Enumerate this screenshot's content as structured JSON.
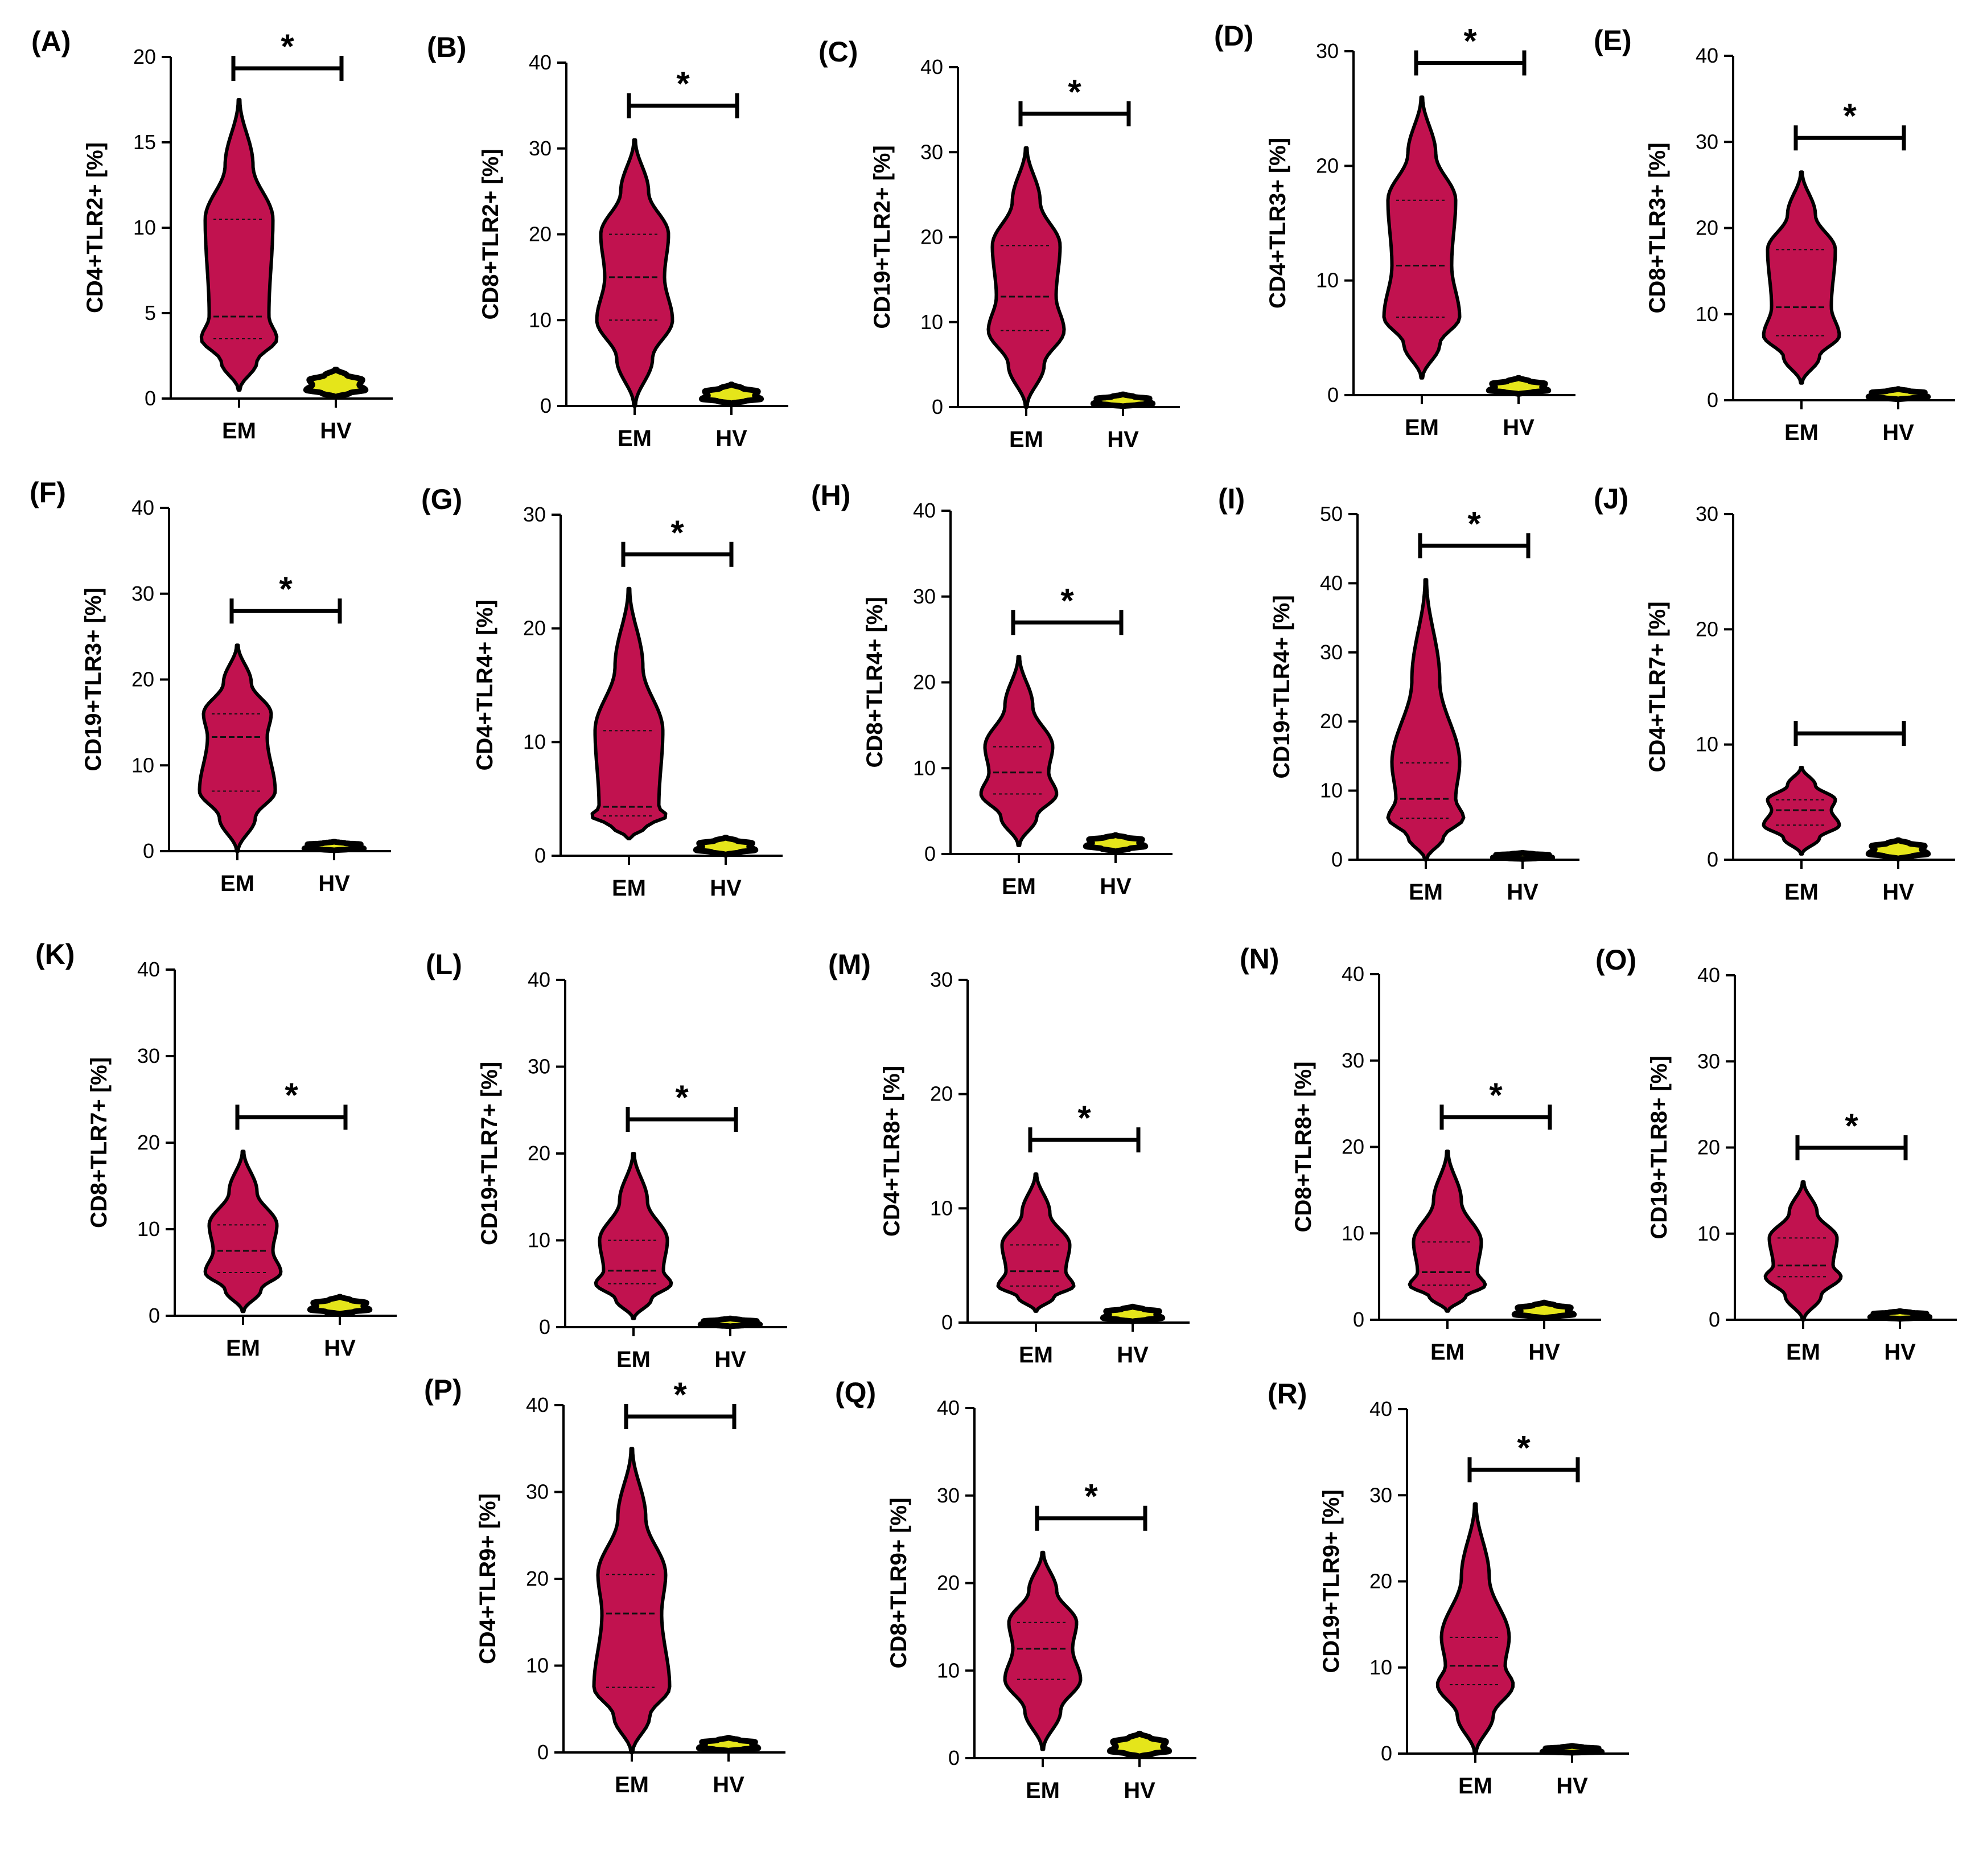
{
  "colors": {
    "em_fill": "#C1124F",
    "hv_fill": "#E5E51A",
    "outline": "#000000"
  },
  "chart_data": [
    {
      "panel": "(A)",
      "type": "violin",
      "ylabel": "CD4+TLR2+ [%]",
      "ylim": [
        0,
        20
      ],
      "yticks": [
        "0",
        "5",
        "10",
        "15",
        "20"
      ],
      "categories": [
        "EM",
        "HV"
      ],
      "significance": "*",
      "em": {
        "min": 0.5,
        "max": 17.5,
        "median": 4.8,
        "q1": 3.5,
        "q3": 10.5
      },
      "hv": {
        "min": 0.1,
        "max": 1.7,
        "median": 0.8,
        "q1": 0.5,
        "q3": 1.1
      }
    },
    {
      "panel": "(B)",
      "type": "violin",
      "ylabel": "CD8+TLR2+ [%]",
      "ylim": [
        0,
        40
      ],
      "yticks": [
        "0",
        "10",
        "20",
        "30",
        "40"
      ],
      "categories": [
        "EM",
        "HV"
      ],
      "significance": "*",
      "em": {
        "min": 0,
        "max": 31,
        "median": 15,
        "q1": 10,
        "q3": 20
      },
      "hv": {
        "min": 0.3,
        "max": 2.5,
        "median": 1.2,
        "q1": 0.8,
        "q3": 1.7
      }
    },
    {
      "panel": "(C)",
      "type": "violin",
      "ylabel": "CD19+TLR2+ [%]",
      "ylim": [
        0,
        40
      ],
      "yticks": [
        "0",
        "10",
        "20",
        "30",
        "40"
      ],
      "categories": [
        "EM",
        "HV"
      ],
      "significance": "*",
      "em": {
        "min": 0,
        "max": 30.5,
        "median": 13,
        "q1": 9,
        "q3": 19
      },
      "hv": {
        "min": 0.1,
        "max": 1.5,
        "median": 0.7,
        "q1": 0.4,
        "q3": 1.0
      }
    },
    {
      "panel": "(D)",
      "type": "violin",
      "ylabel": "CD4+TLR3+ [%]",
      "ylim": [
        0,
        30
      ],
      "yticks": [
        "0",
        "10",
        "20",
        "30"
      ],
      "categories": [
        "EM",
        "HV"
      ],
      "significance": "*",
      "em": {
        "min": 1.5,
        "max": 26,
        "median": 11.3,
        "q1": 6.8,
        "q3": 17
      },
      "hv": {
        "min": 0.1,
        "max": 1.5,
        "median": 0.7,
        "q1": 0.4,
        "q3": 1.0
      }
    },
    {
      "panel": "(E)",
      "type": "violin",
      "ylabel": "CD8+TLR3+ [%]",
      "ylim": [
        0,
        40
      ],
      "yticks": [
        "0",
        "10",
        "20",
        "30",
        "40"
      ],
      "categories": [
        "EM",
        "HV"
      ],
      "significance": "*",
      "em": {
        "min": 2,
        "max": 26.5,
        "median": 10.8,
        "q1": 7.5,
        "q3": 17.5
      },
      "hv": {
        "min": 0.1,
        "max": 1.3,
        "median": 0.6,
        "q1": 0.4,
        "q3": 0.9
      }
    },
    {
      "panel": "(F)",
      "type": "violin",
      "ylabel": "CD19+TLR3+ [%]",
      "ylim": [
        0,
        40
      ],
      "yticks": [
        "0",
        "10",
        "20",
        "30",
        "40"
      ],
      "categories": [
        "EM",
        "HV"
      ],
      "significance": "*",
      "em": {
        "min": 0,
        "max": 24,
        "median": 13.3,
        "q1": 7,
        "q3": 16
      },
      "hv": {
        "min": 0.1,
        "max": 1.1,
        "median": 0.5,
        "q1": 0.3,
        "q3": 0.8
      }
    },
    {
      "panel": "(G)",
      "type": "violin",
      "ylabel": "CD4+TLR4+ [%]",
      "ylim": [
        0,
        30
      ],
      "yticks": [
        "0",
        "10",
        "20",
        "30"
      ],
      "categories": [
        "EM",
        "HV"
      ],
      "significance": "*",
      "em": {
        "min": 1.5,
        "max": 23.5,
        "median": 4.3,
        "q1": 3.5,
        "q3": 11
      },
      "hv": {
        "min": 0.1,
        "max": 1.6,
        "median": 0.8,
        "q1": 0.5,
        "q3": 1.1
      }
    },
    {
      "panel": "(H)",
      "type": "violin",
      "ylabel": "CD8+TLR4+ [%]",
      "ylim": [
        0,
        40
      ],
      "yticks": [
        "0",
        "10",
        "20",
        "30",
        "40"
      ],
      "categories": [
        "EM",
        "HV"
      ],
      "significance": "*",
      "em": {
        "min": 1,
        "max": 23,
        "median": 9.5,
        "q1": 7,
        "q3": 12.5
      },
      "hv": {
        "min": 0.3,
        "max": 2.2,
        "median": 1.3,
        "q1": 0.9,
        "q3": 1.7
      }
    },
    {
      "panel": "(I)",
      "type": "violin",
      "ylabel": "CD19+TLR4+ [%]",
      "ylim": [
        0,
        50
      ],
      "yticks": [
        "0",
        "10",
        "20",
        "30",
        "40",
        "50"
      ],
      "categories": [
        "EM",
        "HV"
      ],
      "significance": "*",
      "em": {
        "min": 0,
        "max": 40.5,
        "median": 8.8,
        "q1": 6,
        "q3": 14
      },
      "hv": {
        "min": 0.1,
        "max": 1.0,
        "median": 0.5,
        "q1": 0.3,
        "q3": 0.7
      }
    },
    {
      "panel": "(J)",
      "type": "violin",
      "ylabel": "CD4+TLR7+ [%]",
      "ylim": [
        0,
        30
      ],
      "yticks": [
        "0",
        "10",
        "20",
        "30"
      ],
      "categories": [
        "EM",
        "HV"
      ],
      "significance": "",
      "em": {
        "min": 0.5,
        "max": 8,
        "median": 4.3,
        "q1": 3,
        "q3": 5.2
      },
      "hv": {
        "min": 0.1,
        "max": 1.7,
        "median": 0.9,
        "q1": 0.5,
        "q3": 1.2
      }
    },
    {
      "panel": "(K)",
      "type": "violin",
      "ylabel": "CD8+TLR7+ [%]",
      "ylim": [
        0,
        40
      ],
      "yticks": [
        "0",
        "10",
        "20",
        "30",
        "40"
      ],
      "categories": [
        "EM",
        "HV"
      ],
      "significance": "*",
      "em": {
        "min": 0.5,
        "max": 19,
        "median": 7.5,
        "q1": 5,
        "q3": 10.5
      },
      "hv": {
        "min": 0.2,
        "max": 2.2,
        "median": 1.1,
        "q1": 0.7,
        "q3": 1.5
      }
    },
    {
      "panel": "(L)",
      "type": "violin",
      "ylabel": "CD19+TLR7+ [%]",
      "ylim": [
        0,
        40
      ],
      "yticks": [
        "0",
        "10",
        "20",
        "30",
        "40"
      ],
      "categories": [
        "EM",
        "HV"
      ],
      "significance": "*",
      "em": {
        "min": 1,
        "max": 20,
        "median": 6.5,
        "q1": 5,
        "q3": 10
      },
      "hv": {
        "min": 0.1,
        "max": 1.0,
        "median": 0.5,
        "q1": 0.3,
        "q3": 0.7
      }
    },
    {
      "panel": "(M)",
      "type": "violin",
      "ylabel": "CD4+TLR8+ [%]",
      "ylim": [
        0,
        30
      ],
      "yticks": [
        "0",
        "10",
        "20",
        "30"
      ],
      "categories": [
        "EM",
        "HV"
      ],
      "significance": "*",
      "em": {
        "min": 1,
        "max": 13,
        "median": 4.5,
        "q1": 3.2,
        "q3": 6.8
      },
      "hv": {
        "min": 0.1,
        "max": 1.4,
        "median": 0.7,
        "q1": 0.4,
        "q3": 1.0
      }
    },
    {
      "panel": "(N)",
      "type": "violin",
      "ylabel": "CD8+TLR8+ [%]",
      "ylim": [
        0,
        40
      ],
      "yticks": [
        "0",
        "10",
        "20",
        "30",
        "40"
      ],
      "categories": [
        "EM",
        "HV"
      ],
      "significance": "*",
      "em": {
        "min": 1,
        "max": 19.5,
        "median": 5.5,
        "q1": 4,
        "q3": 9
      },
      "hv": {
        "min": 0.2,
        "max": 2.0,
        "median": 1.0,
        "q1": 0.6,
        "q3": 1.4
      }
    },
    {
      "panel": "(O)",
      "type": "violin",
      "ylabel": "CD19+TLR8+ [%]",
      "ylim": [
        0,
        40
      ],
      "yticks": [
        "0",
        "10",
        "20",
        "30",
        "40"
      ],
      "categories": [
        "EM",
        "HV"
      ],
      "significance": "*",
      "em": {
        "min": 0,
        "max": 16,
        "median": 6.3,
        "q1": 5,
        "q3": 9.5
      },
      "hv": {
        "min": 0.1,
        "max": 1.0,
        "median": 0.5,
        "q1": 0.3,
        "q3": 0.7
      }
    },
    {
      "panel": "(P)",
      "type": "violin",
      "ylabel": "CD4+TLR9+ [%]",
      "ylim": [
        0,
        40
      ],
      "yticks": [
        "0",
        "10",
        "20",
        "30",
        "40"
      ],
      "categories": [
        "EM",
        "HV"
      ],
      "significance": "*",
      "em": {
        "min": 0,
        "max": 35,
        "median": 16,
        "q1": 7.5,
        "q3": 20.5
      },
      "hv": {
        "min": 0.2,
        "max": 1.7,
        "median": 0.9,
        "q1": 0.5,
        "q3": 1.2
      }
    },
    {
      "panel": "(Q)",
      "type": "violin",
      "ylabel": "CD8+TLR9+ [%]",
      "ylim": [
        0,
        40
      ],
      "yticks": [
        "0",
        "10",
        "20",
        "30",
        "40"
      ],
      "categories": [
        "EM",
        "HV"
      ],
      "significance": "*",
      "em": {
        "min": 1,
        "max": 23.5,
        "median": 12.5,
        "q1": 9,
        "q3": 15.5
      },
      "hv": {
        "min": 0.2,
        "max": 2.8,
        "median": 1.3,
        "q1": 0.8,
        "q3": 1.9
      }
    },
    {
      "panel": "(R)",
      "type": "violin",
      "ylabel": "CD19+TLR9+ [%]",
      "ylim": [
        0,
        40
      ],
      "yticks": [
        "0",
        "10",
        "20",
        "30",
        "40"
      ],
      "categories": [
        "EM",
        "HV"
      ],
      "significance": "*",
      "em": {
        "min": 0,
        "max": 29,
        "median": 10.2,
        "q1": 8,
        "q3": 13.5
      },
      "hv": {
        "min": 0.1,
        "max": 0.9,
        "median": 0.4,
        "q1": 0.2,
        "q3": 0.6
      }
    }
  ]
}
